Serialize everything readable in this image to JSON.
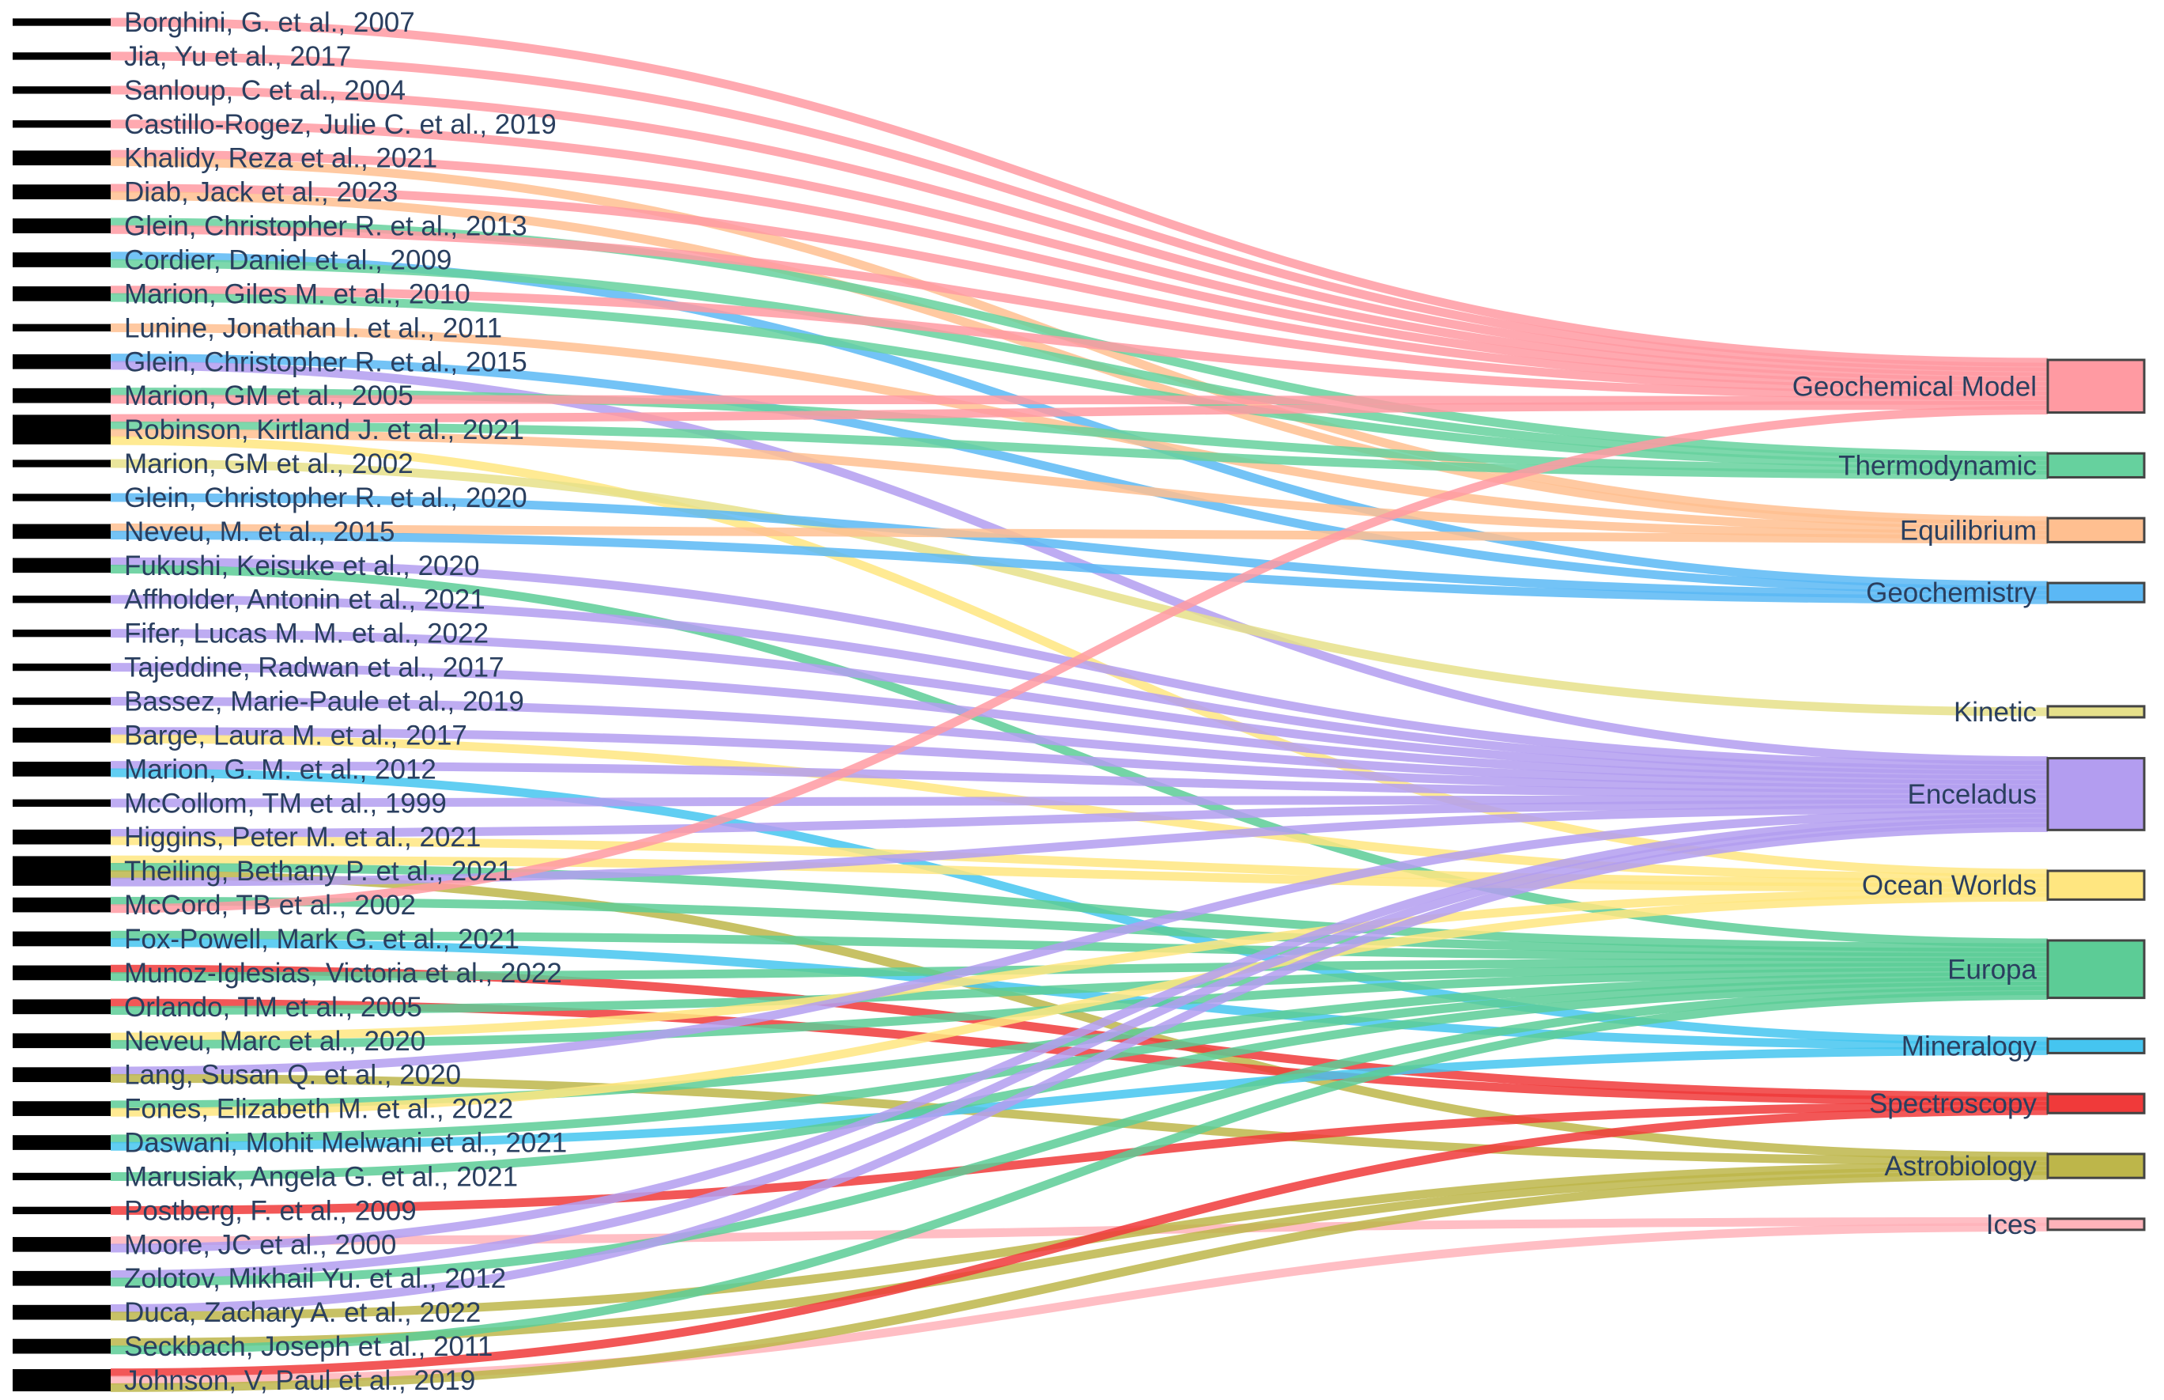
{
  "diagram": {
    "type": "sankey",
    "sources": [
      {
        "label": "Borghini, G. et al., 2007",
        "targets": [
          "Geochemical Model"
        ]
      },
      {
        "label": "Jia, Yu et al., 2017",
        "targets": [
          "Geochemical Model"
        ]
      },
      {
        "label": "Sanloup, C et al., 2004",
        "targets": [
          "Geochemical Model"
        ]
      },
      {
        "label": "Castillo-Rogez, Julie C. et al., 2019",
        "targets": [
          "Geochemical Model"
        ]
      },
      {
        "label": "Khalidy, Reza et al., 2021",
        "targets": [
          "Geochemical Model",
          "Equilibrium"
        ]
      },
      {
        "label": "Diab, Jack et al., 2023",
        "targets": [
          "Geochemical Model",
          "Equilibrium"
        ]
      },
      {
        "label": "Glein, Christopher R. et al., 2013",
        "targets": [
          "Thermodynamic",
          "Geochemical Model"
        ]
      },
      {
        "label": "Cordier, Daniel et al., 2009",
        "targets": [
          "Geochemistry",
          "Thermodynamic"
        ]
      },
      {
        "label": "Marion, Giles M. et al., 2010",
        "targets": [
          "Geochemical Model",
          "Thermodynamic"
        ]
      },
      {
        "label": "Lunine, Jonathan I. et al., 2011",
        "targets": [
          "Equilibrium"
        ]
      },
      {
        "label": "Glein, Christopher R. et al., 2015",
        "targets": [
          "Geochemistry",
          "Enceladus"
        ]
      },
      {
        "label": "Marion, GM et al., 2005",
        "targets": [
          "Thermodynamic",
          "Geochemical Model"
        ]
      },
      {
        "label": "Robinson, Kirtland J. et al., 2021",
        "targets": [
          "Geochemical Model",
          "Thermodynamic",
          "Equilibrium",
          "Ocean Worlds"
        ]
      },
      {
        "label": "Marion, GM et al., 2002",
        "targets": [
          "Kinetic"
        ]
      },
      {
        "label": "Glein, Christopher R. et al., 2020",
        "targets": [
          "Geochemistry"
        ]
      },
      {
        "label": "Neveu, M. et al., 2015",
        "targets": [
          "Equilibrium",
          "Geochemistry"
        ]
      },
      {
        "label": "Fukushi, Keisuke et al., 2020",
        "targets": [
          "Enceladus",
          "Europa"
        ]
      },
      {
        "label": "Affholder, Antonin et al., 2021",
        "targets": [
          "Enceladus"
        ]
      },
      {
        "label": "Fifer, Lucas M. M. et al., 2022",
        "targets": [
          "Enceladus"
        ]
      },
      {
        "label": "Tajeddine, Radwan et al., 2017",
        "targets": [
          "Enceladus"
        ]
      },
      {
        "label": "Bassez, Marie-Paule et al., 2019",
        "targets": [
          "Enceladus"
        ]
      },
      {
        "label": "Barge, Laura M. et al., 2017",
        "targets": [
          "Enceladus",
          "Ocean Worlds"
        ]
      },
      {
        "label": "Marion, G. M. et al., 2012",
        "targets": [
          "Enceladus",
          "Mineralogy"
        ]
      },
      {
        "label": "McCollom, TM et al., 1999",
        "targets": [
          "Enceladus"
        ]
      },
      {
        "label": "Higgins, Peter M. et al., 2021",
        "targets": [
          "Enceladus",
          "Ocean Worlds"
        ]
      },
      {
        "label": "Theiling, Bethany P. et al., 2021",
        "targets": [
          "Ocean Worlds",
          "Europa",
          "Astrobiology",
          "Enceladus"
        ]
      },
      {
        "label": "McCord, TB et al., 2002",
        "targets": [
          "Europa",
          "Geochemical Model"
        ]
      },
      {
        "label": "Fox-Powell, Mark G. et al., 2021",
        "targets": [
          "Europa",
          "Mineralogy"
        ]
      },
      {
        "label": "Munoz-Iglesias, Victoria et al., 2022",
        "targets": [
          "Spectroscopy",
          "Europa"
        ]
      },
      {
        "label": "Orlando, TM et al., 2005",
        "targets": [
          "Spectroscopy",
          "Europa"
        ]
      },
      {
        "label": "Neveu, Marc et al., 2020",
        "targets": [
          "Ocean Worlds",
          "Europa"
        ]
      },
      {
        "label": "Lang, Susan Q. et al., 2020",
        "targets": [
          "Enceladus",
          "Astrobiology"
        ]
      },
      {
        "label": "Fones, Elizabeth M. et al., 2022",
        "targets": [
          "Europa",
          "Ocean Worlds"
        ]
      },
      {
        "label": "Daswani, Mohit Melwani et al., 2021",
        "targets": [
          "Europa",
          "Mineralogy"
        ]
      },
      {
        "label": "Marusiak, Angela G. et al., 2021",
        "targets": [
          "Europa"
        ]
      },
      {
        "label": "Postberg, F. et al., 2009",
        "targets": [
          "Spectroscopy"
        ]
      },
      {
        "label": "Moore, JC et al., 2000",
        "targets": [
          "Ices",
          "Enceladus"
        ]
      },
      {
        "label": "Zolotov, Mikhail Yu. et al., 2012",
        "targets": [
          "Enceladus",
          "Europa"
        ]
      },
      {
        "label": "Duca, Zachary A. et al., 2022",
        "targets": [
          "Enceladus",
          "Astrobiology"
        ]
      },
      {
        "label": "Seckbach, Joseph et al., 2011",
        "targets": [
          "Astrobiology",
          "Europa"
        ]
      },
      {
        "label": "Johnson, V, Paul et al., 2019",
        "targets": [
          "Spectroscopy",
          "Ices",
          "Astrobiology"
        ]
      }
    ],
    "targets": [
      {
        "label": "Geochemical Model",
        "color": "#ff9aa2"
      },
      {
        "label": "Thermodynamic",
        "color": "#66d19e"
      },
      {
        "label": "Equilibrium",
        "color": "#ffbf90"
      },
      {
        "label": "Geochemistry",
        "color": "#5bb8f5"
      },
      {
        "label": "Kinetic",
        "color": "#e6e08a"
      },
      {
        "label": "Enceladus",
        "color": "#b39df0"
      },
      {
        "label": "Ocean Worlds",
        "color": "#ffe680"
      },
      {
        "label": "Europa",
        "color": "#5ccc96"
      },
      {
        "label": "Mineralogy",
        "color": "#45c5f0"
      },
      {
        "label": "Spectroscopy",
        "color": "#f03a3a"
      },
      {
        "label": "Astrobiology",
        "color": "#bdb64a"
      },
      {
        "label": "Ices",
        "color": "#ffb3ba"
      }
    ]
  }
}
